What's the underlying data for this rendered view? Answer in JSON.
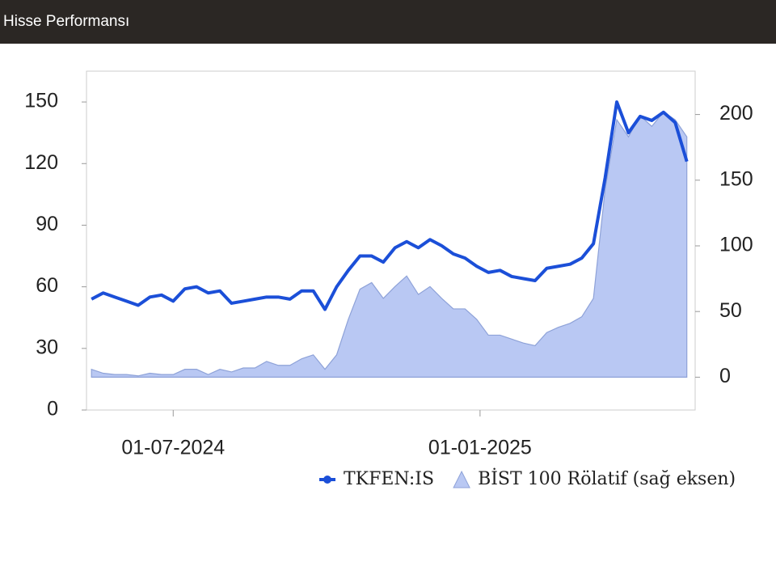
{
  "header": {
    "title": "Hisse Performansı"
  },
  "chart_data": {
    "type": "line-area",
    "x": [
      "2024-05-13",
      "2024-05-20",
      "2024-05-27",
      "2024-06-03",
      "2024-06-10",
      "2024-06-17",
      "2024-06-24",
      "2024-07-01",
      "2024-07-08",
      "2024-07-15",
      "2024-07-22",
      "2024-07-29",
      "2024-08-05",
      "2024-08-12",
      "2024-08-19",
      "2024-08-26",
      "2024-09-02",
      "2024-09-09",
      "2024-09-16",
      "2024-09-23",
      "2024-09-30",
      "2024-10-07",
      "2024-10-14",
      "2024-10-21",
      "2024-10-28",
      "2024-11-04",
      "2024-11-11",
      "2024-11-18",
      "2024-11-25",
      "2024-12-02",
      "2024-12-09",
      "2024-12-16",
      "2024-12-23",
      "2024-12-30",
      "2025-01-06",
      "2025-01-13",
      "2025-01-20",
      "2025-01-27",
      "2025-02-03",
      "2025-02-10",
      "2025-02-17",
      "2025-02-24",
      "2025-03-03",
      "2025-03-10",
      "2025-03-17",
      "2025-03-24",
      "2025-03-31",
      "2025-04-07",
      "2025-04-14",
      "2025-04-21",
      "2025-04-28",
      "2025-05-05"
    ],
    "series": [
      {
        "name": "TKFEN:IS",
        "color": "#1b4fd8",
        "kind": "line",
        "values": [
          54,
          57,
          55,
          53,
          51,
          55,
          56,
          53,
          59,
          60,
          57,
          58,
          52,
          53,
          54,
          55,
          55,
          54,
          58,
          58,
          49,
          60,
          68,
          75,
          75,
          72,
          79,
          82,
          79,
          83,
          80,
          76,
          74,
          70,
          67,
          68,
          65,
          64,
          63,
          69,
          70,
          71,
          74,
          81,
          113,
          150,
          135,
          143,
          141,
          145,
          140,
          121
        ]
      },
      {
        "name": "BİST 100 Rölatif (sağ eksen)",
        "color": "#b9c8f3",
        "kind": "area",
        "axis": "y2",
        "values": [
          6,
          3,
          2,
          2,
          1,
          3,
          2,
          2,
          6,
          6,
          2,
          6,
          4,
          7,
          7,
          12,
          9,
          9,
          14,
          17,
          6,
          17,
          44,
          67,
          72,
          60,
          69,
          77,
          63,
          69,
          60,
          52,
          52,
          44,
          32,
          32,
          29,
          26,
          24,
          34,
          38,
          41,
          46,
          60,
          143,
          196,
          183,
          199,
          191,
          202,
          196,
          183
        ]
      }
    ],
    "xlim": [
      "2024-05-10",
      "2025-05-10"
    ],
    "xticks": [
      {
        "value": "2024-07-01",
        "label": "01-07-2024"
      },
      {
        "value": "2025-01-01",
        "label": "01-01-2025"
      }
    ],
    "ylim": [
      0,
      165
    ],
    "yticks": [
      0,
      30,
      60,
      90,
      120,
      150
    ],
    "y2lim": [
      -25,
      233
    ],
    "y2ticks": [
      0,
      50,
      100,
      150,
      200
    ]
  }
}
